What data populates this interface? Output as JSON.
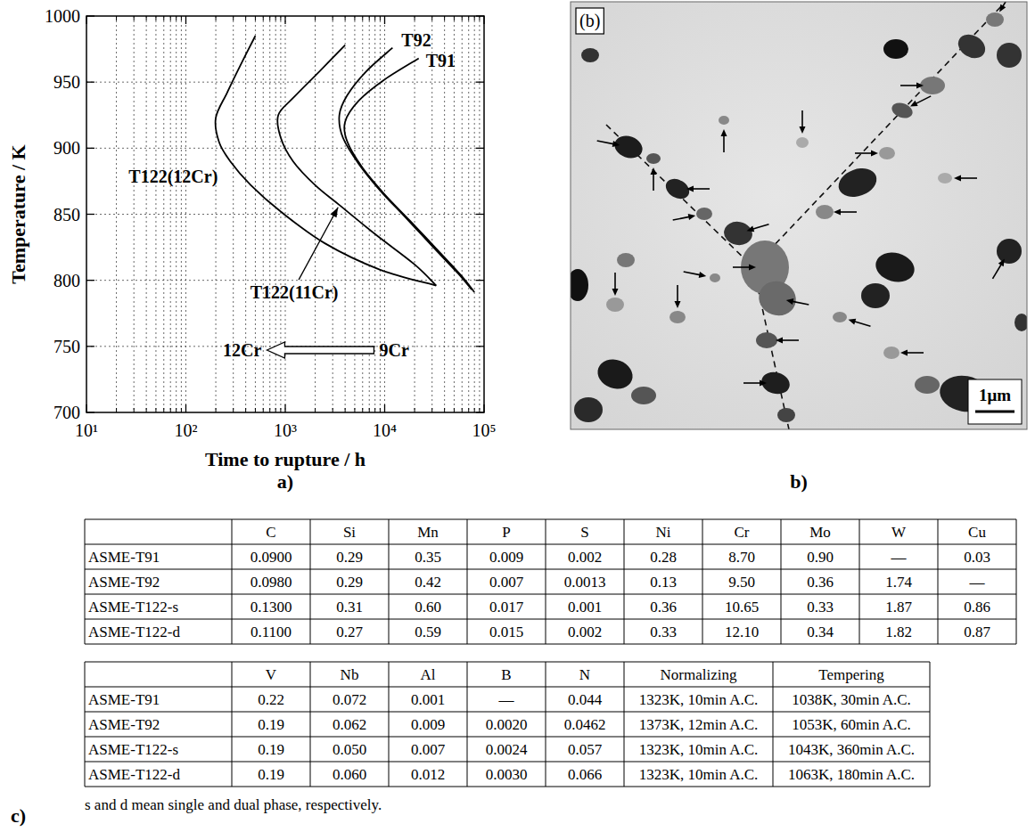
{
  "chart_data": {
    "type": "line",
    "xlabel": "Time to rupture / h",
    "ylabel": "Temperature / K",
    "log": "x",
    "grid": true,
    "xlim": [
      10,
      100000
    ],
    "ylim": [
      700,
      1000
    ],
    "xticks": [
      {
        "value": 10,
        "label": "10¹"
      },
      {
        "value": 100,
        "label": "10²"
      },
      {
        "value": 1000,
        "label": "10³"
      },
      {
        "value": 10000,
        "label": "10⁴"
      },
      {
        "value": 100000,
        "label": "10⁵"
      }
    ],
    "yticks": [
      700,
      750,
      800,
      850,
      900,
      950,
      1000
    ],
    "series": [
      {
        "name": "T122(12Cr)",
        "color": "#000000",
        "x": [
          500,
          350,
          260,
          200,
          215,
          280,
          450,
          900,
          2500,
          9000,
          33000
        ],
        "values": [
          985,
          962,
          942,
          923,
          905,
          890,
          872,
          852,
          828,
          808,
          796
        ]
      },
      {
        "name": "T122(11Cr)",
        "color": "#000000",
        "x": [
          4000,
          2200,
          1200,
          850,
          900,
          1200,
          2000,
          3500,
          8000,
          20000,
          33000
        ],
        "values": [
          978,
          958,
          938,
          925,
          908,
          890,
          872,
          857,
          835,
          812,
          796
        ]
      },
      {
        "name": "T92",
        "color": "#000000",
        "x": [
          12000,
          6500,
          4200,
          3500,
          3800,
          5500,
          9000,
          16000,
          30000,
          55000,
          75000
        ],
        "values": [
          976,
          958,
          940,
          925,
          908,
          888,
          868,
          848,
          826,
          805,
          793
        ]
      },
      {
        "name": "T91",
        "color": "#000000",
        "x": [
          22000,
          10000,
          5500,
          4000,
          4200,
          6000,
          10000,
          18000,
          33000,
          60000,
          80000
        ],
        "values": [
          968,
          952,
          936,
          920,
          905,
          885,
          865,
          845,
          824,
          803,
          791
        ]
      }
    ],
    "annotations": [
      "12Cr",
      "9Cr"
    ],
    "panel_label": "a)"
  },
  "micrograph": {
    "panel_tag": "(b)",
    "scale_bar": "1μm",
    "panel_label": "b)"
  },
  "tables": {
    "panel_label": "c)",
    "table1": {
      "columns": [
        "C",
        "Si",
        "Mn",
        "P",
        "S",
        "Ni",
        "Cr",
        "Mo",
        "W",
        "Cu"
      ],
      "rows": [
        {
          "name": "ASME-T91",
          "cells": [
            "0.0900",
            "0.29",
            "0.35",
            "0.009",
            "0.002",
            "0.28",
            "8.70",
            "0.90",
            "—",
            "0.03"
          ]
        },
        {
          "name": "ASME-T92",
          "cells": [
            "0.0980",
            "0.29",
            "0.42",
            "0.007",
            "0.0013",
            "0.13",
            "9.50",
            "0.36",
            "1.74",
            "—"
          ]
        },
        {
          "name": "ASME-T122-s",
          "cells": [
            "0.1300",
            "0.31",
            "0.60",
            "0.017",
            "0.001",
            "0.36",
            "10.65",
            "0.33",
            "1.87",
            "0.86"
          ]
        },
        {
          "name": "ASME-T122-d",
          "cells": [
            "0.1100",
            "0.27",
            "0.59",
            "0.015",
            "0.002",
            "0.33",
            "12.10",
            "0.34",
            "1.82",
            "0.87"
          ]
        }
      ]
    },
    "table2": {
      "columns": [
        "V",
        "Nb",
        "Al",
        "B",
        "N",
        "Normalizing",
        "Tempering"
      ],
      "rows": [
        {
          "name": "ASME-T91",
          "cells": [
            "0.22",
            "0.072",
            "0.001",
            "—",
            "0.044",
            "1323K, 10min A.C.",
            "1038K, 30min A.C."
          ]
        },
        {
          "name": "ASME-T92",
          "cells": [
            "0.19",
            "0.062",
            "0.009",
            "0.0020",
            "0.0462",
            "1373K, 12min A.C.",
            "1053K, 60min A.C."
          ]
        },
        {
          "name": "ASME-T122-s",
          "cells": [
            "0.19",
            "0.050",
            "0.007",
            "0.0024",
            "0.057",
            "1323K, 10min A.C.",
            "1043K, 360min A.C."
          ]
        },
        {
          "name": "ASME-T122-d",
          "cells": [
            "0.19",
            "0.060",
            "0.012",
            "0.0030",
            "0.066",
            "1323K, 10min A.C.",
            "1063K, 180min A.C."
          ]
        }
      ]
    },
    "footnote": "s and d mean single and dual phase, respectively."
  }
}
